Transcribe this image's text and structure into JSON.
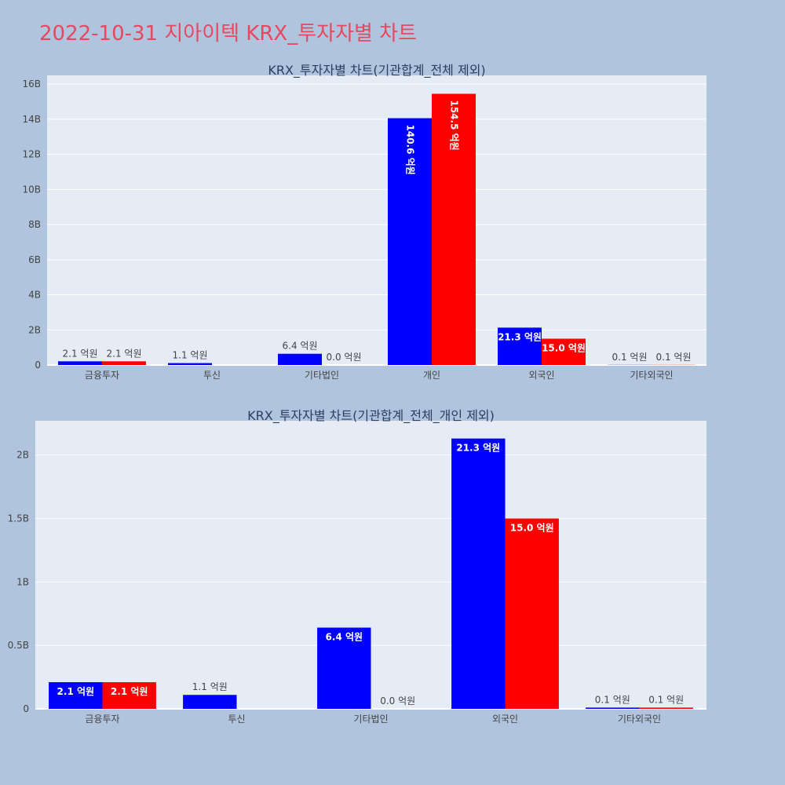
{
  "page": {
    "title": "2022-10-31 지아이텍 KRX_투자자별 차트"
  },
  "colors": {
    "background": "#b0c4de",
    "plot_background": "#e5ecf6",
    "title": "#e8475f",
    "series_buy": "#0000ff",
    "series_sell": "#ff0000",
    "axis_text": "#444444"
  },
  "chart_data": [
    {
      "type": "bar",
      "title": "KRX_투자자별 차트(기관합계_전체 제외)",
      "categories": [
        "금융투자",
        "투신",
        "기타법인",
        "개인",
        "외국인",
        "기타외국인"
      ],
      "series": [
        {
          "color": "#0000ff",
          "values": [
            210000000,
            110000000,
            640000000,
            14060000000,
            2130000000,
            10000000
          ],
          "labels": [
            "2.1 억원",
            "1.1 억원",
            "6.4 억원",
            "140.6 억원",
            "21.3 억원",
            "0.1 억원"
          ]
        },
        {
          "color": "#ff0000",
          "values": [
            210000000,
            0,
            0,
            15450000000,
            1500000000,
            10000000
          ],
          "labels": [
            "2.1 억원",
            "",
            "0.0 억원",
            "154.5 억원",
            "15.0 억원",
            "0.1 억원"
          ]
        }
      ],
      "ylim": [
        0,
        16500000000
      ],
      "yticks": [
        0,
        2000000000,
        4000000000,
        6000000000,
        8000000000,
        10000000000,
        12000000000,
        14000000000,
        16000000000
      ],
      "ytick_labels": [
        "0",
        "2B",
        "4B",
        "6B",
        "8B",
        "10B",
        "12B",
        "14B",
        "16B"
      ],
      "grid": true
    },
    {
      "type": "bar",
      "title": "KRX_투자자별 차트(기관합계_전체_개인 제외)",
      "categories": [
        "금융투자",
        "투신",
        "기타법인",
        "외국인",
        "기타외국인"
      ],
      "series": [
        {
          "color": "#0000ff",
          "values": [
            210000000,
            110000000,
            640000000,
            2130000000,
            10000000
          ],
          "labels": [
            "2.1 억원",
            "1.1 억원",
            "6.4 억원",
            "21.3 억원",
            "0.1 억원"
          ]
        },
        {
          "color": "#ff0000",
          "values": [
            210000000,
            0,
            0,
            1500000000,
            10000000
          ],
          "labels": [
            "2.1 억원",
            "",
            "0.0 억원",
            "15.0 억원",
            "0.1 억원"
          ]
        }
      ],
      "ylim": [
        0,
        2270000000
      ],
      "yticks": [
        0,
        500000000,
        1000000000,
        1500000000,
        2000000000
      ],
      "ytick_labels": [
        "0",
        "0.5B",
        "1B",
        "1.5B",
        "2B"
      ],
      "grid": true
    }
  ]
}
